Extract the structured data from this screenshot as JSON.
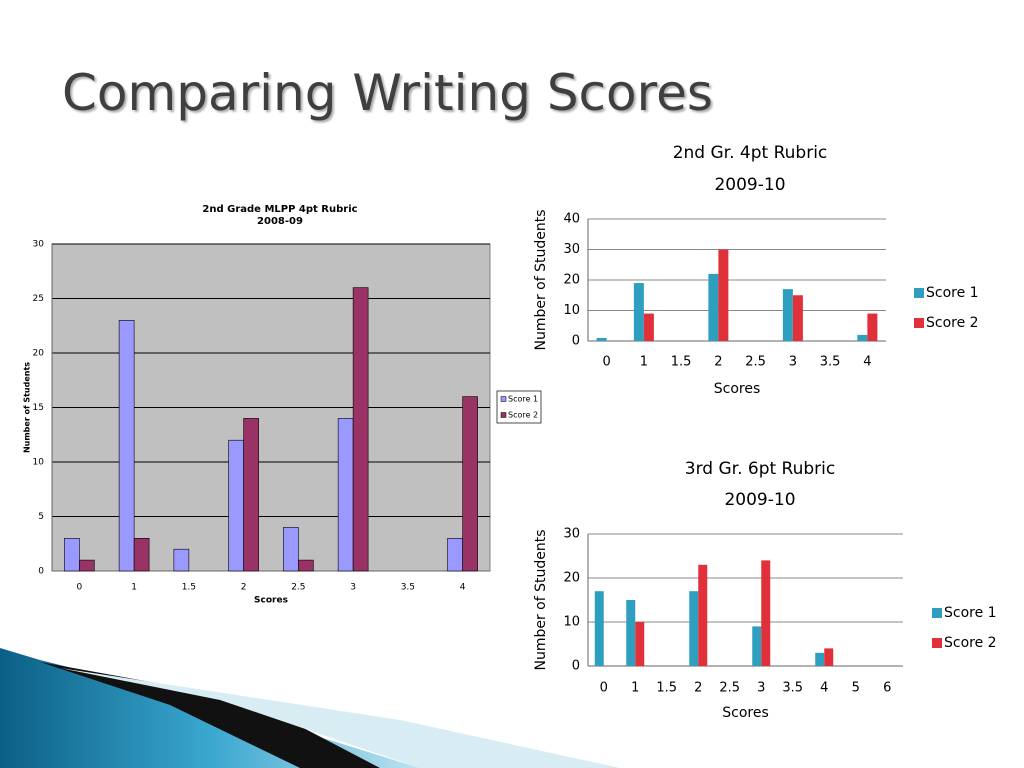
{
  "title": "Comparing Writing Scores",
  "chart_data": [
    {
      "type": "bar",
      "title": "2nd Grade MLPP 4pt Rubric",
      "subtitle": "2008-09",
      "x_label": "Scores",
      "y_label": "Number of Students",
      "categories": [
        "0",
        "1",
        "1.5",
        "2",
        "2.5",
        "3",
        "3.5",
        "4"
      ],
      "series": [
        {
          "name": "Score 1",
          "color": "#9999ff",
          "values": [
            3,
            23,
            2,
            12,
            4,
            14,
            0,
            3
          ]
        },
        {
          "name": "Score 2",
          "color": "#993366",
          "values": [
            1,
            3,
            0,
            14,
            1,
            26,
            0,
            16
          ]
        }
      ],
      "ylim": [
        0,
        30
      ],
      "yticks": [
        0,
        5,
        10,
        15,
        20,
        25,
        30
      ],
      "grid": true,
      "plot_background": "#c0c0c0",
      "legend": "right"
    },
    {
      "type": "bar",
      "title": "2nd Gr. 4pt Rubric",
      "subtitle": "2009-10",
      "x_label": "Scores",
      "y_label": "Number of Students",
      "categories": [
        "0",
        "1",
        "1.5",
        "2",
        "2.5",
        "3",
        "3.5",
        "4"
      ],
      "series": [
        {
          "name": "Score 1",
          "color": "#2f9fbf",
          "values": [
            1,
            19,
            0,
            22,
            0,
            17,
            0,
            2
          ]
        },
        {
          "name": "Score 2",
          "color": "#e0303a",
          "values": [
            0,
            9,
            0,
            30,
            0,
            15,
            0,
            9
          ]
        }
      ],
      "ylim": [
        0,
        40
      ],
      "yticks": [
        0,
        10,
        20,
        30,
        40
      ],
      "grid": true,
      "legend": "right"
    },
    {
      "type": "bar",
      "title": "3rd Gr. 6pt Rubric",
      "subtitle": "2009-10",
      "x_label": "Scores",
      "y_label": "Number of Students",
      "categories": [
        "0",
        "1",
        "1.5",
        "2",
        "2.5",
        "3",
        "3.5",
        "4",
        "5",
        "6"
      ],
      "series": [
        {
          "name": "Score 1",
          "color": "#2f9fbf",
          "values": [
            17,
            15,
            0,
            17,
            0,
            9,
            0,
            3,
            0,
            0
          ]
        },
        {
          "name": "Score 2",
          "color": "#e0303a",
          "values": [
            0,
            10,
            0,
            23,
            0,
            24,
            0,
            4,
            0,
            0
          ]
        }
      ],
      "ylim": [
        0,
        30
      ],
      "yticks": [
        0,
        10,
        20,
        30
      ],
      "grid": true,
      "legend": "right"
    }
  ]
}
